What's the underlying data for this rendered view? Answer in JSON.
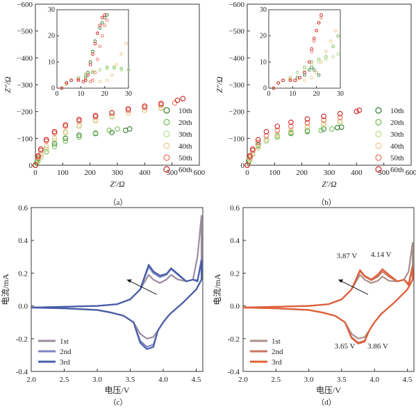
{
  "chart_data": [
    {
      "panel_label": "（a）",
      "type": "scatter",
      "xlabel": "Z′/Ω",
      "ylabel": "Z″/Ω",
      "xlim": [
        0,
        600
      ],
      "ylim": [
        0,
        -600
      ],
      "xticks": [
        "0",
        "100",
        "200",
        "300",
        "400",
        "500",
        "600"
      ],
      "yticks": [
        "0",
        "−100",
        "−200",
        "−300",
        "−400",
        "−500",
        "−600"
      ],
      "legend_position": "right",
      "series": [
        {
          "name": "10th",
          "color": "#2d7a2d",
          "x": [
            0,
            5,
            10,
            20,
            40,
            70,
            110,
            160,
            220,
            280,
            330,
            345
          ],
          "y": [
            0,
            -10,
            -25,
            -40,
            -60,
            -80,
            -100,
            -112,
            -118,
            -122,
            -130,
            -135
          ]
        },
        {
          "name": "20th",
          "color": "#6ebd4e",
          "x": [
            0,
            5,
            10,
            20,
            40,
            70,
            110,
            160,
            220,
            270,
            300
          ],
          "y": [
            0,
            -8,
            -18,
            -30,
            -50,
            -70,
            -90,
            -105,
            -120,
            -130,
            -135
          ]
        },
        {
          "name": "30th",
          "color": "#b7dc8c",
          "x": [
            0,
            10,
            20,
            40,
            70,
            110,
            160,
            220,
            280,
            340,
            400,
            460
          ],
          "y": [
            0,
            -15,
            -30,
            -60,
            -90,
            -120,
            -150,
            -170,
            -185,
            -195,
            -205,
            -212
          ]
        },
        {
          "name": "40th",
          "color": "#f2c58a",
          "x": [
            0,
            10,
            20,
            40,
            70,
            110,
            160,
            220,
            280,
            340,
            400,
            460
          ],
          "y": [
            0,
            -20,
            -40,
            -70,
            -100,
            -125,
            -145,
            -165,
            -180,
            -195,
            -205,
            -215
          ]
        },
        {
          "name": "50th",
          "color": "#e5705a",
          "x": [
            0,
            10,
            20,
            40,
            70,
            110,
            160,
            220,
            280,
            340,
            400,
            460,
            510
          ],
          "y": [
            0,
            -30,
            -55,
            -90,
            -120,
            -145,
            -165,
            -180,
            -195,
            -205,
            -215,
            -225,
            -232
          ]
        },
        {
          "name": "60th",
          "color": "#cc2222",
          "x": [
            0,
            10,
            20,
            40,
            70,
            110,
            160,
            220,
            280,
            340,
            400,
            460,
            520,
            540
          ],
          "y": [
            0,
            -35,
            -60,
            -95,
            -125,
            -150,
            -170,
            -185,
            -195,
            -210,
            -220,
            -230,
            -242,
            -248
          ]
        }
      ],
      "inset": {
        "xlim": [
          0,
          30
        ],
        "ylim": [
          0,
          -30
        ],
        "xticks": [
          "0",
          "10",
          "20",
          "30"
        ],
        "yticks": [
          "0",
          "10",
          "20",
          "30"
        ],
        "series": [
          {
            "name": "10th",
            "x": [
              2,
              4,
              6,
              9,
              12,
              13,
              14,
              15,
              16,
              17,
              18,
              19,
              20,
              21
            ],
            "y": [
              0,
              -2,
              -3,
              -3.5,
              -4,
              -6,
              -10,
              -14,
              -18,
              -21,
              -23,
              -25,
              -27,
              -28
            ]
          },
          {
            "name": "20th",
            "x": [
              2,
              4,
              6,
              9,
              12,
              15,
              18,
              21,
              24,
              27,
              30
            ],
            "y": [
              0,
              -1.5,
              -3,
              -4,
              -5,
              -6,
              -7,
              -8,
              -8,
              -7.5,
              -7
            ]
          },
          {
            "name": "30th",
            "x": [
              2,
              4,
              6,
              9,
              12,
              15,
              18,
              21,
              24,
              27,
              30
            ],
            "y": [
              0,
              -1.5,
              -3,
              -4,
              -5.5,
              -6.5,
              -7,
              -7.5,
              -7.5,
              -7,
              -7
            ]
          },
          {
            "name": "40th",
            "x": [
              2,
              4,
              6,
              9,
              12,
              15,
              18,
              21,
              23,
              25,
              27,
              29
            ],
            "y": [
              0,
              -1.5,
              -3,
              -3.5,
              -3.5,
              -3,
              -2.5,
              -3,
              -5,
              -9,
              -13,
              -17
            ]
          },
          {
            "name": "50th",
            "x": [
              2,
              4,
              6,
              9,
              12,
              14,
              15,
              16,
              17,
              18,
              19,
              20,
              21
            ],
            "y": [
              0,
              -2,
              -3,
              -3.5,
              -3,
              -2.5,
              -3,
              -6,
              -11,
              -16,
              -20,
              -24,
              -26
            ]
          },
          {
            "name": "60th",
            "x": [
              2,
              4,
              6,
              9,
              11,
              12,
              13,
              14,
              15,
              16,
              17,
              18,
              19,
              20
            ],
            "y": [
              0,
              -2,
              -3,
              -3,
              -2.5,
              -3,
              -5,
              -9,
              -13,
              -17,
              -21,
              -24,
              -27,
              -28
            ]
          }
        ]
      }
    },
    {
      "panel_label": "（b）",
      "type": "scatter",
      "xlabel": "Z′/Ω",
      "ylabel": "Z″/Ω",
      "xlim": [
        0,
        600
      ],
      "ylim": [
        0,
        -600
      ],
      "xticks": [
        "0",
        "100",
        "200",
        "300",
        "400",
        "500",
        "600"
      ],
      "yticks": [
        "0",
        "−100",
        "−200",
        "−300",
        "−400",
        "−500",
        "−600"
      ],
      "legend_position": "right",
      "series": [
        {
          "name": "10th",
          "color": "#2d7a2d",
          "x": [
            0,
            5,
            10,
            20,
            40,
            70,
            110,
            160,
            220,
            280,
            330,
            345
          ],
          "y": [
            0,
            -15,
            -35,
            -55,
            -75,
            -95,
            -110,
            -120,
            -128,
            -135,
            -140,
            -142
          ]
        },
        {
          "name": "20th",
          "color": "#6ebd4e",
          "x": [
            0,
            5,
            10,
            20,
            40,
            70,
            110,
            160,
            220,
            270,
            310
          ],
          "y": [
            0,
            -10,
            -25,
            -45,
            -70,
            -90,
            -105,
            -118,
            -125,
            -130,
            -135
          ]
        },
        {
          "name": "30th",
          "color": "#b7dc8c",
          "x": [
            0,
            10,
            20,
            40,
            70,
            110,
            160,
            220,
            280,
            340
          ],
          "y": [
            0,
            -20,
            -40,
            -65,
            -90,
            -110,
            -125,
            -140,
            -150,
            -160
          ]
        },
        {
          "name": "40th",
          "color": "#f2c58a",
          "x": [
            0,
            10,
            20,
            40,
            70,
            110,
            160,
            220,
            280,
            340
          ],
          "y": [
            0,
            -25,
            -45,
            -70,
            -95,
            -115,
            -130,
            -145,
            -155,
            -165
          ]
        },
        {
          "name": "50th",
          "color": "#e5705a",
          "x": [
            0,
            10,
            20,
            40,
            70,
            110,
            160,
            220,
            280,
            340
          ],
          "y": [
            0,
            -30,
            -55,
            -85,
            -110,
            -130,
            -145,
            -158,
            -168,
            -178
          ]
        },
        {
          "name": "60th",
          "color": "#cc2222",
          "x": [
            0,
            10,
            20,
            40,
            70,
            110,
            160,
            220,
            280,
            340,
            400,
            410
          ],
          "y": [
            0,
            -35,
            -60,
            -95,
            -125,
            -145,
            -160,
            -172,
            -182,
            -192,
            -200,
            -205
          ]
        }
      ],
      "inset": {
        "xlim": [
          0,
          30
        ],
        "ylim": [
          0,
          -30
        ],
        "xticks": [
          "0",
          "10",
          "20",
          "30"
        ],
        "yticks": [
          "0",
          "10",
          "20",
          "30"
        ],
        "series": [
          {
            "name": "10th",
            "x": [
              2,
              4,
              6,
              9,
              12,
              15,
              17,
              18,
              19,
              20,
              21
            ],
            "y": [
              0,
              -2,
              -3,
              -3.5,
              -4,
              -5,
              -7,
              -8,
              -7,
              -6,
              -5
            ]
          },
          {
            "name": "20th",
            "x": [
              2,
              4,
              6,
              9,
              12,
              15,
              18,
              21,
              24,
              27,
              29
            ],
            "y": [
              0,
              -2,
              -3,
              -4,
              -6,
              -8,
              -10,
              -11,
              -12,
              -16,
              -20
            ]
          },
          {
            "name": "30th",
            "x": [
              2,
              4,
              6,
              9,
              12,
              15,
              18,
              21,
              24,
              27,
              29
            ],
            "y": [
              0,
              -2,
              -3,
              -4,
              -6,
              -7,
              -9,
              -10,
              -11,
              -12,
              -13
            ]
          },
          {
            "name": "40th",
            "x": [
              2,
              4,
              6,
              9,
              12,
              15,
              18,
              20,
              22,
              24,
              26,
              28
            ],
            "y": [
              0,
              -2,
              -3,
              -3.5,
              -3,
              -3,
              -4,
              -6,
              -10,
              -14,
              -18,
              -22
            ]
          },
          {
            "name": "50th",
            "x": [
              2,
              4,
              6,
              9,
              11,
              13,
              15,
              17,
              18,
              19,
              20,
              21,
              22
            ],
            "y": [
              0,
              -2,
              -3,
              -3,
              -3,
              -4,
              -6,
              -10,
              -14,
              -18,
              -22,
              -25,
              -27
            ]
          },
          {
            "name": "60th",
            "x": [
              2,
              4,
              6,
              9,
              11,
              13,
              15,
              17,
              18,
              19,
              20,
              21,
              22
            ],
            "y": [
              0,
              -2,
              -3,
              -3,
              -3,
              -4,
              -6,
              -10,
              -15,
              -19,
              -22,
              -25,
              -28
            ]
          }
        ]
      }
    },
    {
      "panel_label": "（c）",
      "type": "line",
      "xlabel": "电压/V",
      "ylabel": "电流/mA",
      "xlim": [
        2.0,
        4.6
      ],
      "ylim": [
        -0.4,
        0.6
      ],
      "xticks": [
        "2.0",
        "2.5",
        "3.0",
        "3.5",
        "4.0",
        "4.5"
      ],
      "yticks": [
        "-0.4",
        "-0.2",
        "0.0",
        "0.2",
        "0.4",
        "0.6"
      ],
      "legend_position": "bottom-left",
      "series": [
        {
          "name": "1st",
          "color": "#9a8b9e"
        },
        {
          "name": "2nd",
          "color": "#7e86c2"
        },
        {
          "name": "3rd",
          "color": "#4a5ea8"
        }
      ]
    },
    {
      "panel_label": "（d）",
      "type": "line",
      "xlabel": "电压/V",
      "ylabel": "电流/mA",
      "xlim": [
        2.0,
        4.6
      ],
      "ylim": [
        -0.4,
        0.6
      ],
      "xticks": [
        "2.0",
        "2.5",
        "3.0",
        "3.5",
        "4.0",
        "4.5"
      ],
      "yticks": [
        "-0.4",
        "-0.2",
        "0.0",
        "0.2",
        "0.4",
        "0.6"
      ],
      "legend_position": "bottom-left",
      "annotations": [
        "3.87 V",
        "4.14 V",
        "3.65 V",
        "3.86 V"
      ],
      "series": [
        {
          "name": "1st",
          "color": "#a89088"
        },
        {
          "name": "2nd",
          "color": "#c87660"
        },
        {
          "name": "3rd",
          "color": "#e0603a"
        }
      ]
    }
  ]
}
